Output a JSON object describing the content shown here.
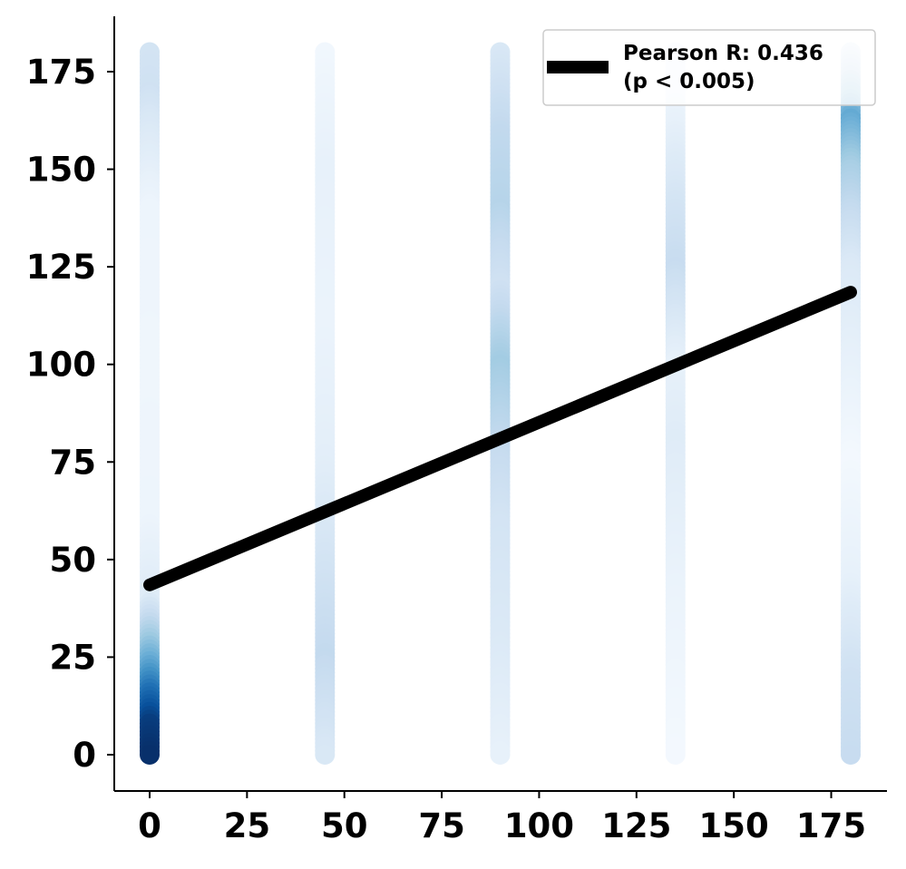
{
  "chart_data": {
    "type": "scatter",
    "title": "",
    "xlabel": "",
    "ylabel": "",
    "xlim": [
      -9,
      189
    ],
    "ylim": [
      -9,
      189
    ],
    "x_ticks": [
      0,
      25,
      50,
      75,
      100,
      125,
      150,
      175
    ],
    "y_ticks": [
      0,
      25,
      50,
      75,
      100,
      125,
      150,
      175
    ],
    "x_tick_labels": [
      "0",
      "25",
      "50",
      "75",
      "100",
      "125",
      "150",
      "175"
    ],
    "y_tick_labels": [
      "0",
      "25",
      "50",
      "75",
      "100",
      "125",
      "150",
      "175"
    ],
    "grid": false,
    "colormap": [
      "#f7fbff",
      "#deebf7",
      "#c6dbef",
      "#9ecae1",
      "#6baed6",
      "#4292c6",
      "#2171b5",
      "#08519c",
      "#08306b"
    ],
    "density_columns": [
      {
        "x": 0,
        "profile": [
          {
            "y": 0,
            "d": 1.0
          },
          {
            "y": 8,
            "d": 0.95
          },
          {
            "y": 16,
            "d": 0.75
          },
          {
            "y": 24,
            "d": 0.5
          },
          {
            "y": 32,
            "d": 0.3
          },
          {
            "y": 40,
            "d": 0.12
          },
          {
            "y": 60,
            "d": 0.05
          },
          {
            "y": 100,
            "d": 0.04
          },
          {
            "y": 140,
            "d": 0.05
          },
          {
            "y": 160,
            "d": 0.14
          },
          {
            "y": 170,
            "d": 0.2
          },
          {
            "y": 180,
            "d": 0.18
          }
        ]
      },
      {
        "x": 45,
        "profile": [
          {
            "y": 0,
            "d": 0.15
          },
          {
            "y": 25,
            "d": 0.26
          },
          {
            "y": 55,
            "d": 0.16
          },
          {
            "y": 75,
            "d": 0.1
          },
          {
            "y": 110,
            "d": 0.06
          },
          {
            "y": 150,
            "d": 0.08
          },
          {
            "y": 180,
            "d": 0.03
          }
        ]
      },
      {
        "x": 90,
        "profile": [
          {
            "y": 0,
            "d": 0.08
          },
          {
            "y": 30,
            "d": 0.14
          },
          {
            "y": 60,
            "d": 0.18
          },
          {
            "y": 80,
            "d": 0.26
          },
          {
            "y": 100,
            "d": 0.36
          },
          {
            "y": 120,
            "d": 0.2
          },
          {
            "y": 140,
            "d": 0.3
          },
          {
            "y": 160,
            "d": 0.26
          },
          {
            "y": 180,
            "d": 0.15
          }
        ]
      },
      {
        "x": 135,
        "profile": [
          {
            "y": 0,
            "d": 0.02
          },
          {
            "y": 40,
            "d": 0.06
          },
          {
            "y": 80,
            "d": 0.12
          },
          {
            "y": 100,
            "d": 0.08
          },
          {
            "y": 125,
            "d": 0.24
          },
          {
            "y": 140,
            "d": 0.18
          },
          {
            "y": 170,
            "d": 0.04
          }
        ]
      },
      {
        "x": 180,
        "profile": [
          {
            "y": 0,
            "d": 0.24
          },
          {
            "y": 20,
            "d": 0.2
          },
          {
            "y": 45,
            "d": 0.08
          },
          {
            "y": 75,
            "d": 0.02
          },
          {
            "y": 100,
            "d": 0.08
          },
          {
            "y": 125,
            "d": 0.14
          },
          {
            "y": 150,
            "d": 0.34
          },
          {
            "y": 163,
            "d": 0.52
          },
          {
            "y": 172,
            "d": 0.3
          },
          {
            "y": 180,
            "d": 0.1
          }
        ]
      }
    ],
    "regression_line": {
      "x": [
        0,
        180
      ],
      "y": [
        43.5,
        118.5
      ],
      "color": "#000000"
    },
    "legend": {
      "position": "top-right",
      "entries": [
        {
          "line1": "Pearson R: 0.436",
          "line2": "(p < 0.005)",
          "color": "#000000"
        }
      ]
    }
  }
}
